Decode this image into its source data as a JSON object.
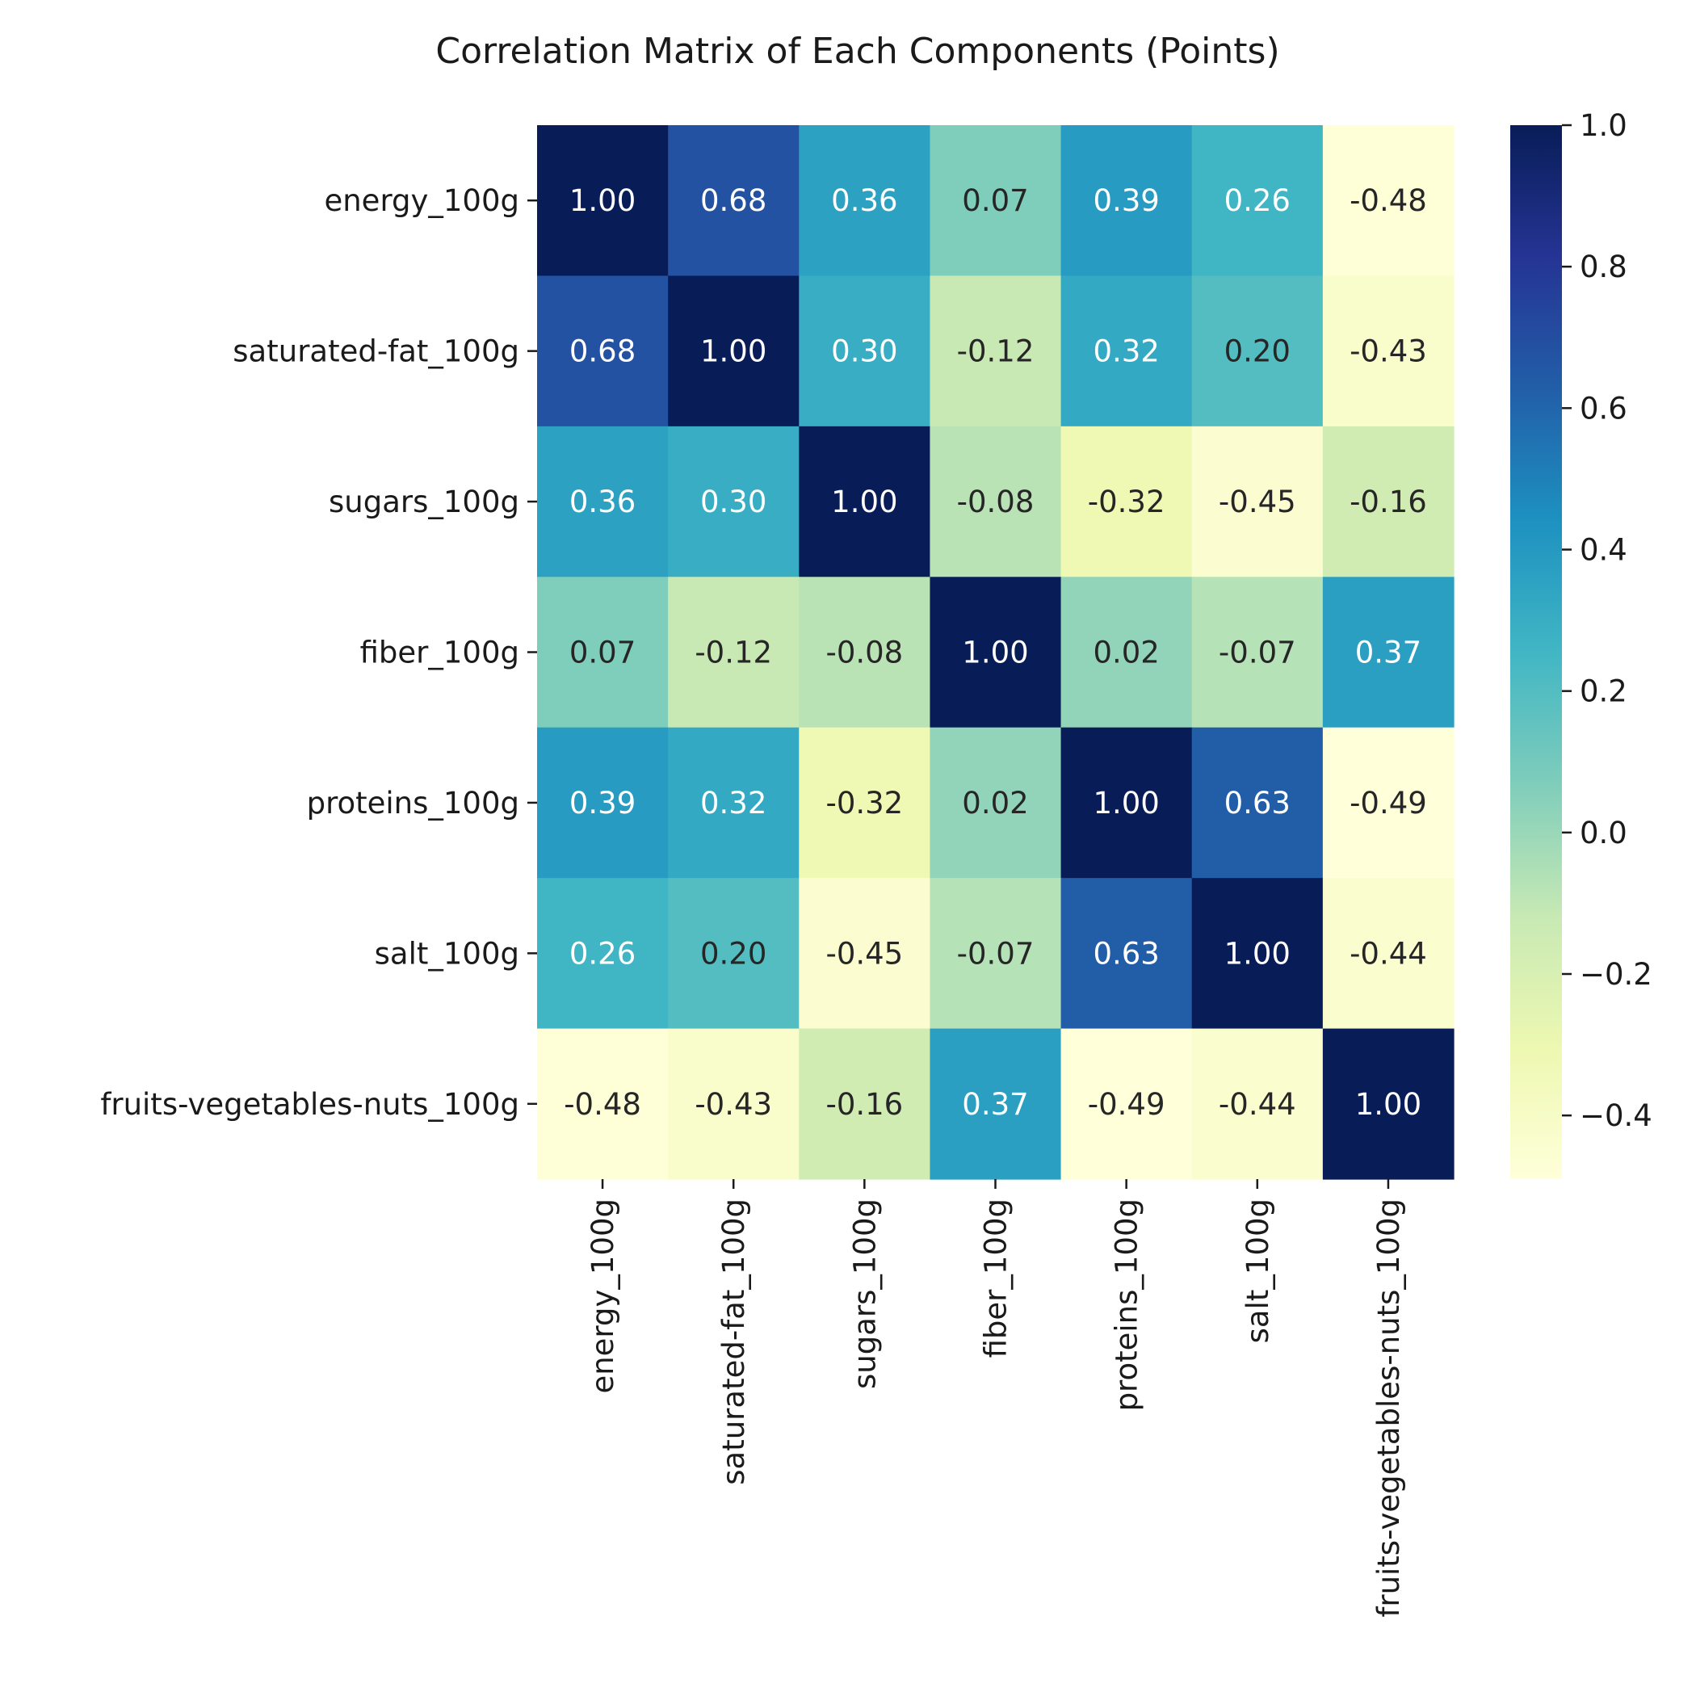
{
  "chart_data": {
    "type": "heatmap",
    "title": "Correlation Matrix of Each Components (Points)",
    "xlabel": "",
    "ylabel": "",
    "categories": [
      "energy_100g",
      "saturated-fat_100g",
      "sugars_100g",
      "fiber_100g",
      "proteins_100g",
      "salt_100g",
      "fruits-vegetables-nuts_100g"
    ],
    "values": [
      [
        1.0,
        0.68,
        0.36,
        0.07,
        0.39,
        0.26,
        -0.48
      ],
      [
        0.68,
        1.0,
        0.3,
        -0.12,
        0.32,
        0.2,
        -0.43
      ],
      [
        0.36,
        0.3,
        1.0,
        -0.08,
        -0.32,
        -0.45,
        -0.16
      ],
      [
        0.07,
        -0.12,
        -0.08,
        1.0,
        0.02,
        -0.07,
        0.37
      ],
      [
        0.39,
        0.32,
        -0.32,
        0.02,
        1.0,
        0.63,
        -0.49
      ],
      [
        0.26,
        0.2,
        -0.45,
        -0.07,
        0.63,
        1.0,
        -0.44
      ],
      [
        -0.48,
        -0.43,
        -0.16,
        0.37,
        -0.49,
        -0.44,
        1.0
      ]
    ],
    "value_format": "2 decimals",
    "colormap": "YlGnBu",
    "color_stops": [
      "#ffffd9",
      "#edf8b1",
      "#c7e9b4",
      "#7fcdbb",
      "#41b6c4",
      "#1d91c0",
      "#225ea8",
      "#253494",
      "#081d58"
    ],
    "vmin": -0.49,
    "vmax": 1.0,
    "colorbar": {
      "ticks": [
        1.0,
        0.8,
        0.6,
        0.4,
        0.2,
        0.0,
        -0.2,
        -0.4
      ],
      "tick_labels": [
        "1.0",
        "0.8",
        "0.6",
        "0.4",
        "0.2",
        "0.0",
        "−0.2",
        "−0.4"
      ],
      "position": "right"
    },
    "grid": false,
    "legend": "none"
  }
}
